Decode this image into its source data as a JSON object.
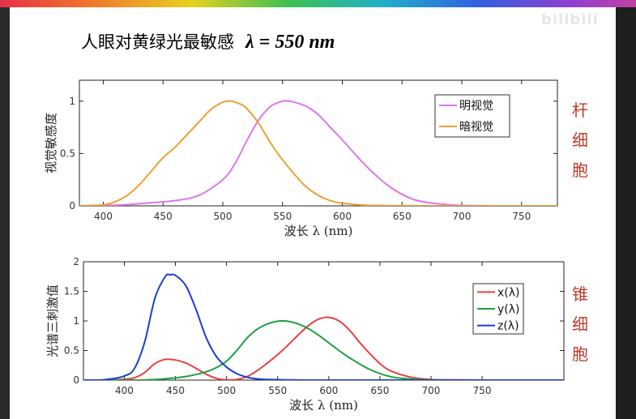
{
  "title": {
    "text": "人眼对黄绿光最敏感",
    "formula": "λ = 550 nm"
  },
  "watermark": "bilibili",
  "colors": {
    "photopic": "#dd77ee",
    "scotopic": "#f0a030",
    "x": "#e84040",
    "y": "#20a040",
    "z": "#1a3fd0",
    "side_label": "#c0392b"
  },
  "chart_data": [
    {
      "type": "line",
      "xlabel": "波长 λ (nm)",
      "ylabel": "视觉敏感度",
      "side_label": [
        "杆",
        "细",
        "胞"
      ],
      "xlim": [
        380,
        780
      ],
      "ylim": [
        0,
        1.2
      ],
      "xticks": [
        400,
        450,
        500,
        550,
        600,
        650,
        700,
        750
      ],
      "yticks": [
        0,
        0.5,
        1
      ],
      "ytick_labels": [
        "0",
        "0.5",
        "1"
      ],
      "legend_position": "top-right",
      "series": [
        {
          "name": "明视觉",
          "color": "#dd77ee",
          "x": [
            380,
            400,
            420,
            440,
            460,
            480,
            500,
            510,
            520,
            530,
            540,
            550,
            555,
            560,
            570,
            580,
            590,
            600,
            620,
            640,
            660,
            680,
            700,
            740,
            780
          ],
          "y": [
            0.0,
            0.004,
            0.012,
            0.03,
            0.05,
            0.1,
            0.25,
            0.4,
            0.62,
            0.82,
            0.95,
            1.0,
            1.0,
            0.99,
            0.95,
            0.87,
            0.75,
            0.63,
            0.38,
            0.18,
            0.06,
            0.02,
            0.004,
            0.0,
            0.0
          ]
        },
        {
          "name": "暗视觉",
          "color": "#f0a030",
          "x": [
            380,
            400,
            410,
            420,
            430,
            440,
            450,
            460,
            470,
            480,
            490,
            500,
            507,
            515,
            520,
            530,
            540,
            550,
            560,
            570,
            580,
            590,
            600,
            620,
            640,
            680,
            780
          ],
          "y": [
            0.0,
            0.01,
            0.04,
            0.1,
            0.2,
            0.33,
            0.46,
            0.56,
            0.68,
            0.8,
            0.92,
            0.99,
            1.0,
            0.97,
            0.93,
            0.79,
            0.6,
            0.44,
            0.3,
            0.18,
            0.1,
            0.05,
            0.025,
            0.006,
            0.002,
            0.0,
            0.0
          ]
        }
      ]
    },
    {
      "type": "line",
      "xlabel": "波长 λ (nm)",
      "ylabel": "光谱三刺激值",
      "side_label": [
        "锥",
        "细",
        "胞"
      ],
      "xlim": [
        360,
        830
      ],
      "ylim": [
        0,
        2
      ],
      "xticks": [
        400,
        450,
        500,
        550,
        600,
        650,
        700,
        750
      ],
      "yticks": [
        0,
        0.5,
        1,
        1.5,
        2
      ],
      "ytick_labels": [
        "0",
        "0.5",
        "1",
        "1.5",
        "2"
      ],
      "legend_position": "top-right",
      "series": [
        {
          "name": "x(λ)",
          "color": "#e84040",
          "x": [
            360,
            380,
            400,
            410,
            420,
            430,
            440,
            450,
            460,
            470,
            480,
            490,
            500,
            510,
            520,
            530,
            540,
            550,
            560,
            570,
            580,
            590,
            600,
            610,
            620,
            630,
            640,
            650,
            660,
            680,
            700,
            720,
            760,
            830
          ],
          "y": [
            0.0,
            0.001,
            0.014,
            0.04,
            0.13,
            0.28,
            0.35,
            0.34,
            0.29,
            0.2,
            0.1,
            0.03,
            0.005,
            0.01,
            0.06,
            0.16,
            0.29,
            0.43,
            0.59,
            0.76,
            0.92,
            1.03,
            1.06,
            1.0,
            0.85,
            0.64,
            0.45,
            0.28,
            0.16,
            0.05,
            0.011,
            0.003,
            0.0,
            0.0
          ]
        },
        {
          "name": "y(λ)",
          "color": "#20a040",
          "x": [
            360,
            400,
            420,
            440,
            460,
            480,
            490,
            500,
            510,
            520,
            530,
            540,
            550,
            555,
            560,
            570,
            580,
            590,
            600,
            610,
            620,
            640,
            660,
            680,
            700,
            740,
            830
          ],
          "y": [
            0.0,
            0.0004,
            0.004,
            0.023,
            0.06,
            0.14,
            0.21,
            0.32,
            0.5,
            0.71,
            0.86,
            0.95,
            0.995,
            1.0,
            0.995,
            0.95,
            0.87,
            0.76,
            0.63,
            0.5,
            0.38,
            0.18,
            0.06,
            0.017,
            0.004,
            0.0,
            0.0
          ]
        },
        {
          "name": "z(λ)",
          "color": "#1a3fd0",
          "x": [
            360,
            380,
            400,
            410,
            420,
            430,
            440,
            445,
            450,
            460,
            470,
            480,
            490,
            500,
            510,
            520,
            530,
            540,
            560,
            600,
            830
          ],
          "y": [
            0.0,
            0.006,
            0.07,
            0.2,
            0.65,
            1.39,
            1.75,
            1.78,
            1.77,
            1.6,
            1.2,
            0.72,
            0.4,
            0.22,
            0.11,
            0.05,
            0.02,
            0.01,
            0.004,
            0.0,
            0.0
          ]
        }
      ]
    }
  ]
}
